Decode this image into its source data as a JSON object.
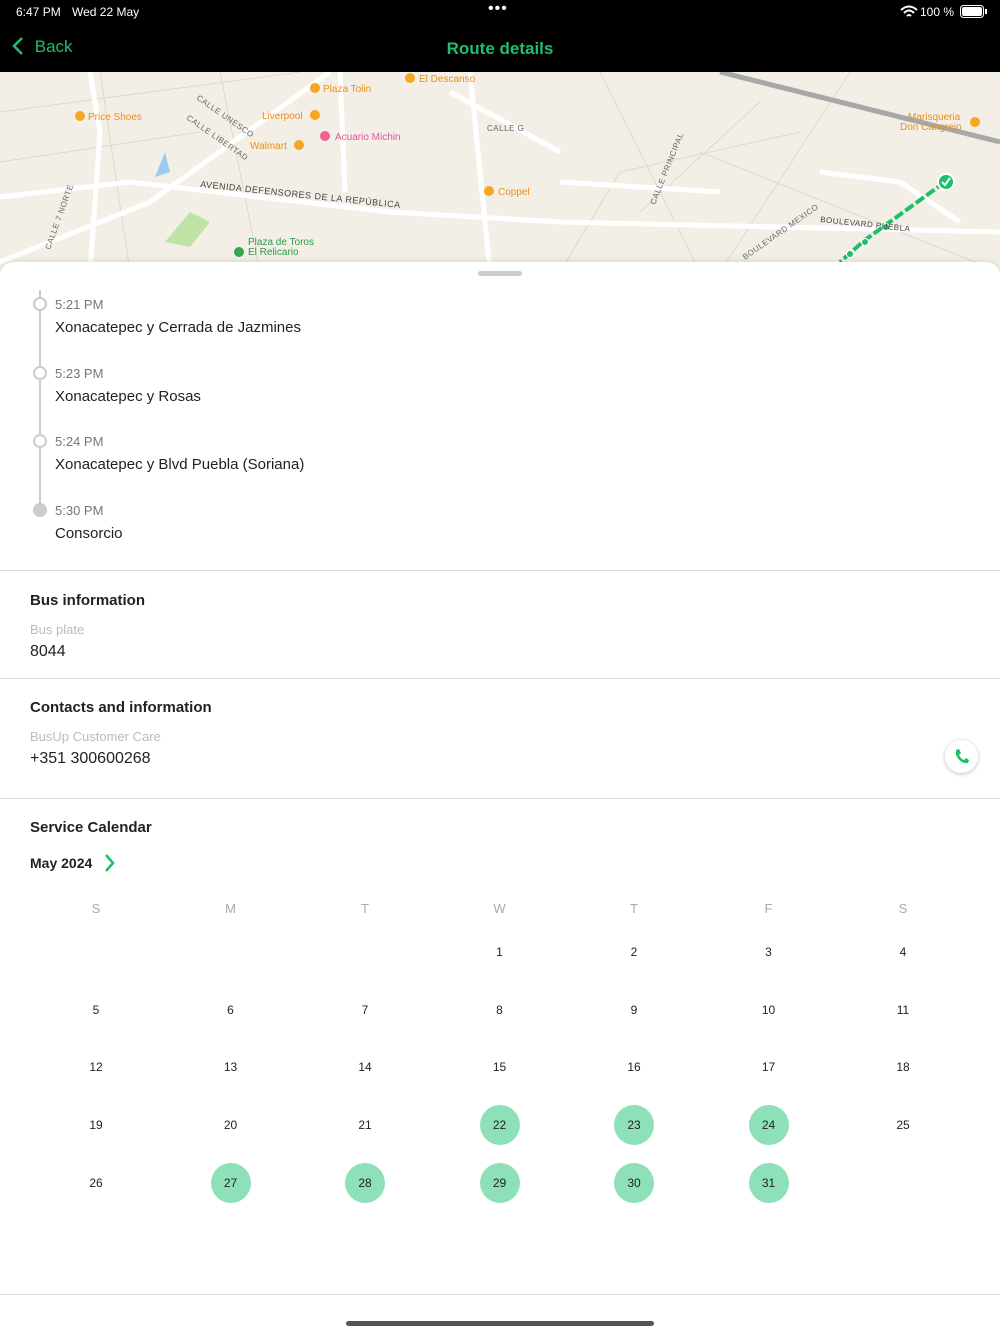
{
  "status_bar": {
    "time": "6:47 PM",
    "date": "Wed 22 May",
    "battery": "100 %"
  },
  "nav": {
    "back": "Back",
    "title": "Route details"
  },
  "map": {
    "labels": [
      "Price Shoes",
      "Liverpool",
      "Plaza Tolin",
      "El Descanso",
      "Acuario Michin",
      "Walmart",
      "Coppel",
      "AVENIDA DEFENSORES DE LA REPÚBLICA",
      "Plaza de Toros",
      "El Relicario",
      "Marisqueria",
      "Don Cangrejo",
      "BOULEVARD PUEBLA",
      "CALLE UNESCO",
      "CALLE LIBERTAD",
      "CALLE PRINCIPAL",
      "CALLE G",
      "CALLE 7 NORTE",
      "BOULEVARD MEXICO"
    ]
  },
  "stops": [
    {
      "time": "5:21 PM",
      "name": "Xonacatepec y Cerrada de Jazmines"
    },
    {
      "time": "5:23 PM",
      "name": "Xonacatepec y Rosas"
    },
    {
      "time": "5:24 PM",
      "name": "Xonacatepec y Blvd Puebla (Soriana)"
    },
    {
      "time": "5:30 PM",
      "name": "Consorcio"
    }
  ],
  "bus": {
    "title": "Bus information",
    "label": "Bus plate",
    "value": "8044"
  },
  "contacts": {
    "title": "Contacts and information",
    "label": "BusUp Customer Care",
    "phone": "+351 300600268"
  },
  "calendar": {
    "title": "Service Calendar",
    "month": "May 2024",
    "weekdays": [
      "S",
      "M",
      "T",
      "W",
      "T",
      "F",
      "S"
    ],
    "weeks": [
      [
        null,
        null,
        null,
        {
          "day": 1
        },
        {
          "day": 2
        },
        {
          "day": 3
        },
        {
          "day": 4
        }
      ],
      [
        {
          "day": 5
        },
        {
          "day": 6
        },
        {
          "day": 7
        },
        {
          "day": 8
        },
        {
          "day": 9
        },
        {
          "day": 10
        },
        {
          "day": 11
        }
      ],
      [
        {
          "day": 12
        },
        {
          "day": 13
        },
        {
          "day": 14
        },
        {
          "day": 15
        },
        {
          "day": 16
        },
        {
          "day": 17
        },
        {
          "day": 18
        }
      ],
      [
        {
          "day": 19
        },
        {
          "day": 20
        },
        {
          "day": 21
        },
        {
          "day": 22,
          "service": true
        },
        {
          "day": 23,
          "service": true
        },
        {
          "day": 24,
          "service": true
        },
        {
          "day": 25
        }
      ],
      [
        {
          "day": 26
        },
        {
          "day": 27,
          "service": true
        },
        {
          "day": 28,
          "service": true
        },
        {
          "day": 29,
          "service": true
        },
        {
          "day": 30,
          "service": true
        },
        {
          "day": 31,
          "service": true
        },
        null
      ]
    ]
  }
}
